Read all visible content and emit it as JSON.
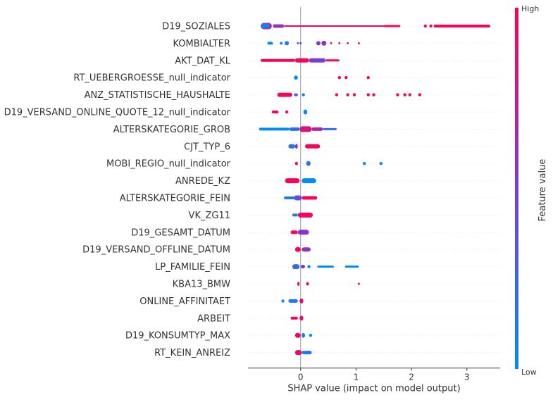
{
  "chart_data": {
    "type": "scatter",
    "subtype": "shap-beeswarm",
    "xlabel": "SHAP value (impact on model output)",
    "xlim": [
      -0.95,
      3.6
    ],
    "xticks": [
      0,
      1,
      2,
      3
    ],
    "colorbar": {
      "label": "Feature value",
      "high_label": "High",
      "low_label": "Low",
      "low_color": "#008bfb",
      "mid_color": "#7a3dd4",
      "high_color": "#ff0052"
    },
    "features": [
      {
        "name": "D19_SOZIALES",
        "points": [
          {
            "x": -0.72,
            "x2": -0.52,
            "v": 0.95,
            "w": 9
          },
          {
            "x": -0.72,
            "x2": -0.55,
            "v": 0.05,
            "w": 7
          },
          {
            "x": -0.5,
            "x2": -0.3,
            "v": 0.6,
            "w": 5
          },
          {
            "x": -0.3,
            "x2": 1.75,
            "v": 0.98,
            "w": 2
          },
          {
            "x": 1.5,
            "x2": 1.8,
            "v": 1.0,
            "w": 3
          },
          {
            "x": 2.25,
            "v": 1.0
          },
          {
            "x": 2.35,
            "v": 1.0
          },
          {
            "x": 2.4,
            "x2": 3.42,
            "v": 1.0,
            "w": 4
          }
        ]
      },
      {
        "name": "KOMBIALTER",
        "points": [
          {
            "x": -0.6,
            "x2": -0.5,
            "v": 0.0,
            "w": 4
          },
          {
            "x": -0.35,
            "v": 0.05,
            "w": 4
          },
          {
            "x": -0.25,
            "v": 0.1,
            "w": 6
          },
          {
            "x": -0.05,
            "v": 0.15,
            "w": 3
          },
          {
            "x": 0.0,
            "v": 0.5,
            "w": 3
          },
          {
            "x": 0.32,
            "v": 0.55,
            "w": 6
          },
          {
            "x": 0.42,
            "v": 0.6,
            "w": 7
          },
          {
            "x": 0.55,
            "v": 0.7,
            "w": 3
          },
          {
            "x": 0.7,
            "v": 0.65,
            "w": 3
          },
          {
            "x": 0.85,
            "v": 0.75,
            "w": 3
          },
          {
            "x": 1.05,
            "v": 0.85,
            "w": 3
          }
        ]
      },
      {
        "name": "AKT_DAT_KL",
        "points": [
          {
            "x": -0.72,
            "x2": -0.1,
            "v": 0.98,
            "w": 4
          },
          {
            "x": -0.1,
            "x2": 0.15,
            "v": 0.95,
            "w": 6
          },
          {
            "x": 0.15,
            "x2": 0.45,
            "v": 0.5,
            "w": 6
          },
          {
            "x": 0.45,
            "x2": 0.7,
            "v": 0.95,
            "w": 3
          }
        ]
      },
      {
        "name": "RT_UEBERGROESSE_null_indicator",
        "points": [
          {
            "x": -0.12,
            "x2": -0.05,
            "v": 0.0,
            "w": 6
          },
          {
            "x": 0.7,
            "v": 1.0
          },
          {
            "x": 0.82,
            "v": 1.0
          },
          {
            "x": 1.22,
            "v": 1.0
          }
        ]
      },
      {
        "name": "ANZ_STATISTISCHE_HAUSHALTE",
        "points": [
          {
            "x": -0.42,
            "x2": -0.15,
            "v": 0.95,
            "w": 6
          },
          {
            "x": -0.12,
            "x2": -0.05,
            "v": 0.3,
            "w": 4
          },
          {
            "x": 0.05,
            "v": 0.05
          },
          {
            "x": 0.65,
            "v": 1.0
          },
          {
            "x": 0.85,
            "v": 1.0
          },
          {
            "x": 0.97,
            "v": 1.0
          },
          {
            "x": 1.22,
            "v": 1.0
          },
          {
            "x": 1.32,
            "v": 1.0
          },
          {
            "x": 1.75,
            "v": 1.0
          },
          {
            "x": 1.88,
            "v": 1.0
          },
          {
            "x": 1.97,
            "v": 1.0
          },
          {
            "x": 2.15,
            "v": 1.0
          }
        ]
      },
      {
        "name": "D19_VERSAND_ONLINE_QUOTE_12_null_indicator",
        "points": [
          {
            "x": -0.52,
            "x2": -0.4,
            "v": 1.0,
            "w": 4
          },
          {
            "x": -0.25,
            "v": 1.0
          },
          {
            "x": 0.05,
            "x2": 0.12,
            "v": 0.0,
            "w": 7
          }
        ]
      },
      {
        "name": "ALTERSKATEGORIE_GROB",
        "points": [
          {
            "x": -0.75,
            "x2": -0.2,
            "v": 0.0,
            "w": 4
          },
          {
            "x": -0.2,
            "x2": -0.02,
            "v": 0.2,
            "w": 5
          },
          {
            "x": -0.02,
            "x2": 0.2,
            "v": 0.85,
            "w": 8
          },
          {
            "x": 0.2,
            "x2": 0.4,
            "v": 0.7,
            "w": 5
          },
          {
            "x": 0.4,
            "x2": 0.65,
            "v": 0.2,
            "w": 3
          }
        ]
      },
      {
        "name": "CJT_TYP_6",
        "points": [
          {
            "x": -0.22,
            "x2": -0.1,
            "v": 0.15,
            "w": 6
          },
          {
            "x": -0.1,
            "x2": -0.05,
            "v": 0.55,
            "w": 7
          },
          {
            "x": 0.08,
            "x2": 0.35,
            "v": 0.95,
            "w": 6
          }
        ]
      },
      {
        "name": "MOBI_REGIO_null_indicator",
        "points": [
          {
            "x": -0.1,
            "x2": -0.05,
            "v": 1.0,
            "w": 5
          },
          {
            "x": 0.1,
            "x2": 0.18,
            "v": 0.15,
            "w": 7
          },
          {
            "x": 1.15,
            "v": 0.0
          },
          {
            "x": 1.45,
            "v": 0.0
          }
        ]
      },
      {
        "name": "ANREDE_KZ",
        "points": [
          {
            "x": -0.28,
            "x2": -0.02,
            "v": 1.0,
            "w": 7
          },
          {
            "x": 0.02,
            "x2": 0.28,
            "v": 0.0,
            "w": 7
          }
        ]
      },
      {
        "name": "ALTERSKATEGORIE_FEIN",
        "points": [
          {
            "x": -0.3,
            "x2": -0.1,
            "v": 0.1,
            "w": 4
          },
          {
            "x": -0.12,
            "x2": 0.02,
            "v": 0.4,
            "w": 7
          },
          {
            "x": 0.02,
            "x2": 0.3,
            "v": 0.95,
            "w": 5
          }
        ]
      },
      {
        "name": "VK_ZG11",
        "points": [
          {
            "x": -0.15,
            "x2": -0.05,
            "v": 0.1,
            "w": 4
          },
          {
            "x": -0.05,
            "x2": 0.22,
            "v": 0.95,
            "w": 7
          }
        ]
      },
      {
        "name": "D19_GESAMT_DATUM",
        "points": [
          {
            "x": -0.18,
            "x2": -0.05,
            "v": 0.95,
            "w": 5
          },
          {
            "x": -0.05,
            "x2": 0.15,
            "v": 0.55,
            "w": 7
          }
        ]
      },
      {
        "name": "D19_VERSAND_OFFLINE_DATUM",
        "points": [
          {
            "x": -0.1,
            "x2": 0.0,
            "v": 1.0,
            "w": 7
          },
          {
            "x": 0.02,
            "x2": 0.18,
            "v": 0.55,
            "w": 6
          }
        ]
      },
      {
        "name": "LP_FAMILIE_FEIN",
        "points": [
          {
            "x": -0.15,
            "x2": -0.02,
            "v": 0.2,
            "w": 7
          },
          {
            "x": 0.0,
            "x2": 0.08,
            "v": 0.5,
            "w": 5
          },
          {
            "x": 0.15,
            "v": 0.0
          },
          {
            "x": 0.3,
            "x2": 0.6,
            "v": 0.0,
            "w": 3
          },
          {
            "x": 0.8,
            "x2": 1.05,
            "v": 0.0,
            "w": 3
          }
        ]
      },
      {
        "name": "KBA13_BMW",
        "points": [
          {
            "x": -0.06,
            "x2": -0.02,
            "v": 0.95,
            "w": 6
          },
          {
            "x": 0.1,
            "x2": 0.15,
            "v": 1.0,
            "w": 5
          },
          {
            "x": 1.05,
            "v": 1.0,
            "w": 3
          }
        ]
      },
      {
        "name": "ONLINE_AFFINITAET",
        "points": [
          {
            "x": -0.32,
            "v": 0.0
          },
          {
            "x": -0.22,
            "x2": -0.05,
            "v": 0.1,
            "w": 5
          },
          {
            "x": -0.02,
            "x2": 0.05,
            "v": 0.9,
            "w": 7
          }
        ]
      },
      {
        "name": "ARBEIT",
        "points": [
          {
            "x": -0.18,
            "x2": -0.05,
            "v": 0.95,
            "w": 4
          },
          {
            "x": -0.02,
            "x2": 0.05,
            "v": 0.9,
            "w": 7
          }
        ]
      },
      {
        "name": "D19_KONSUMTYP_MAX",
        "points": [
          {
            "x": -0.1,
            "x2": 0.0,
            "v": 1.0,
            "w": 7
          },
          {
            "x": 0.02,
            "x2": 0.08,
            "v": 0.05,
            "w": 7
          },
          {
            "x": 0.18,
            "v": 0.0
          }
        ]
      },
      {
        "name": "RT_KEIN_ANREIZ",
        "points": [
          {
            "x": -0.1,
            "x2": 0.02,
            "v": 0.95,
            "w": 7
          },
          {
            "x": 0.02,
            "x2": 0.2,
            "v": 0.1,
            "w": 5
          }
        ]
      }
    ]
  }
}
